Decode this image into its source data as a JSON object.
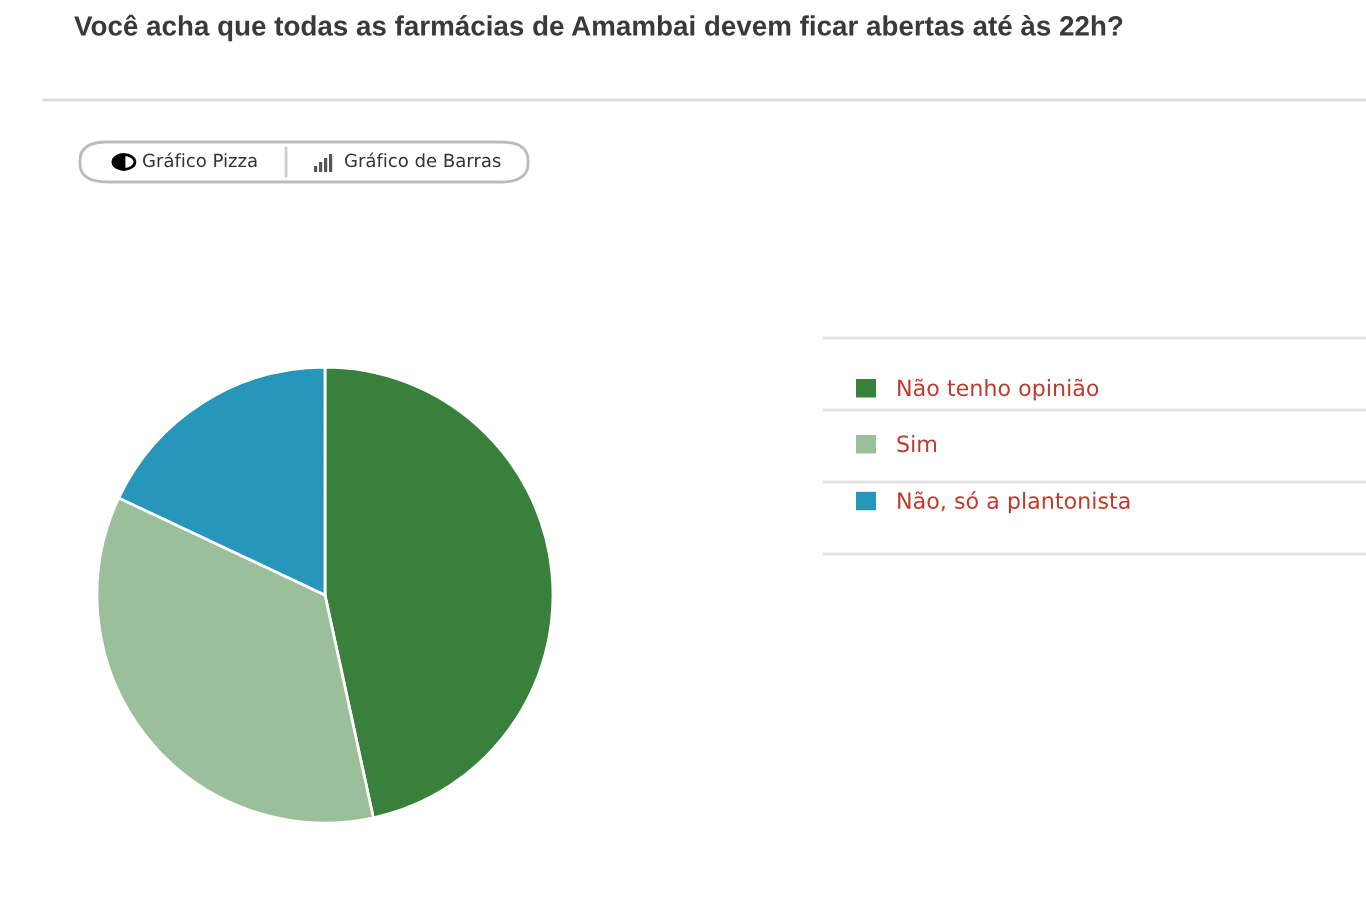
{
  "chart_data": {
    "type": "pie",
    "title": "Você acha que todas as farmácias de Amambai devem ficar abertas até às 22h?",
    "categories": [
      "Não tenho opinião",
      "Sim",
      "Não, só a plantonista"
    ],
    "values": [
      46.6,
      35.4,
      18.0
    ],
    "colors": [
      "#38803c",
      "#9bbf9a",
      "#2696bb"
    ],
    "legend": "right",
    "annotations": [
      "Gráfico Pizza",
      "Gráfico de Barras"
    ]
  }
}
